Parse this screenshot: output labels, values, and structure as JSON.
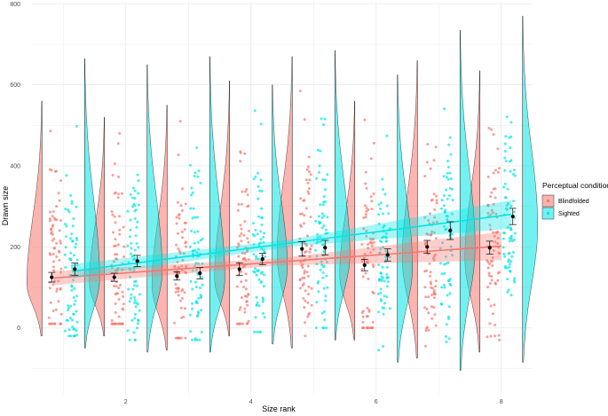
{
  "chart_data": {
    "type": "violin",
    "xlabel": "Size rank",
    "ylabel": "Drawn size",
    "xlim": [
      0.5,
      8.5
    ],
    "ylim": [
      -165,
      805
    ],
    "x_ticks": [
      2,
      4,
      6,
      8
    ],
    "y_ticks": [
      0,
      200,
      400,
      600,
      800
    ],
    "grid": true,
    "legend": {
      "title": "Perceptual condition",
      "position": "right",
      "entries": [
        "Blindfolded",
        "Sighted"
      ]
    },
    "colors": {
      "Blindfolded": "#F8766D",
      "Sighted": "#00E5E5",
      "dark": "#000000"
    },
    "categories": [
      1,
      2,
      3,
      4,
      5,
      6,
      7,
      8
    ],
    "series": [
      {
        "name": "Blindfolded",
        "means": [
          125,
          125,
          128,
          145,
          195,
          155,
          200,
          198
        ],
        "ci": [
          12,
          10,
          10,
          15,
          18,
          14,
          16,
          16
        ],
        "violin": [
          {
            "min": -20,
            "max": 560,
            "mode": 110
          },
          {
            "min": -20,
            "max": 520,
            "mode": 110
          },
          {
            "min": -55,
            "max": 550,
            "mode": 105
          },
          {
            "min": -20,
            "max": 610,
            "mode": 120
          },
          {
            "min": -50,
            "max": 670,
            "mode": 180
          },
          {
            "min": -30,
            "max": 560,
            "mode": 130
          },
          {
            "min": -75,
            "max": 660,
            "mode": 170
          },
          {
            "min": -60,
            "max": 635,
            "mode": 170
          }
        ],
        "trend": {
          "start": 123,
          "end": 202
        }
      },
      {
        "name": "Sighted",
        "means": [
          145,
          165,
          135,
          170,
          198,
          180,
          240,
          275
        ],
        "ci": [
          15,
          14,
          14,
          14,
          18,
          15,
          22,
          20
        ],
        "violin": [
          {
            "min": -50,
            "max": 665,
            "mode": 120
          },
          {
            "min": -60,
            "max": 650,
            "mode": 140
          },
          {
            "min": -60,
            "max": 670,
            "mode": 120
          },
          {
            "min": -40,
            "max": 600,
            "mode": 150
          },
          {
            "min": -30,
            "max": 685,
            "mode": 180
          },
          {
            "min": -85,
            "max": 625,
            "mode": 150
          },
          {
            "min": -105,
            "max": 735,
            "mode": 200
          },
          {
            "min": -85,
            "max": 770,
            "mode": 250
          }
        ],
        "trend": {
          "start": 140,
          "end": 280
        }
      }
    ]
  }
}
